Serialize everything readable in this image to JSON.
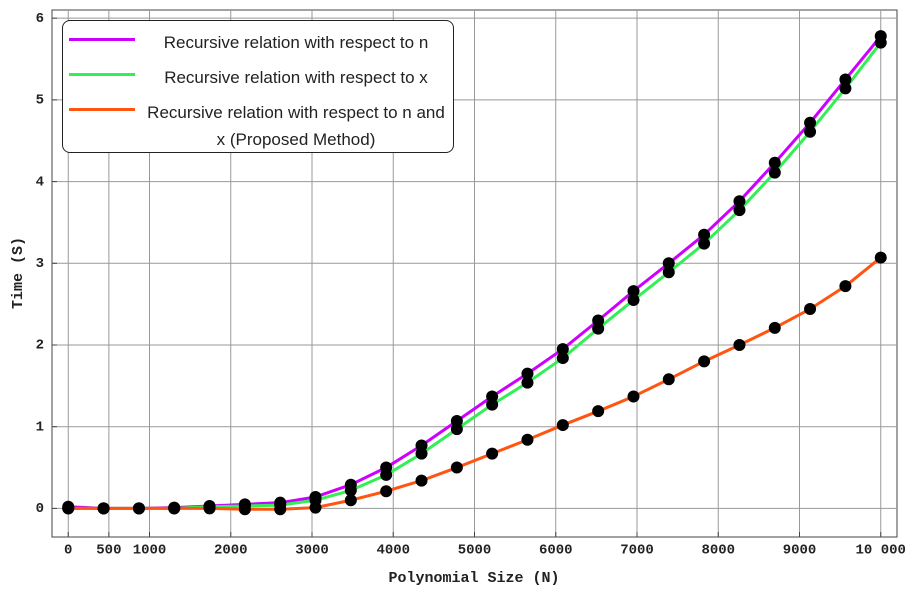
{
  "chart_data": {
    "type": "line",
    "xlabel": "Polynomial Size (N)",
    "ylabel": "Time (S)",
    "x": [
      0,
      435,
      870,
      1304,
      1739,
      2174,
      2609,
      3043,
      3478,
      3913,
      4348,
      4783,
      5217,
      5652,
      6087,
      6522,
      6957,
      7391,
      7826,
      8261,
      8696,
      9130,
      9565,
      10000
    ],
    "series": [
      {
        "name": "Recursive relation with respect to n",
        "color": "#cc00ff",
        "values": [
          0.02,
          0.0,
          0.0,
          0.01,
          0.03,
          0.05,
          0.07,
          0.14,
          0.29,
          0.5,
          0.77,
          1.07,
          1.37,
          1.65,
          1.95,
          2.3,
          2.66,
          3.0,
          3.35,
          3.76,
          4.23,
          4.72,
          5.25,
          5.78
        ]
      },
      {
        "name": "Recursive relation with respect to x",
        "color": "#33ee55",
        "values": [
          0.0,
          0.0,
          0.0,
          0.0,
          0.02,
          0.03,
          0.04,
          0.1,
          0.22,
          0.41,
          0.67,
          0.97,
          1.27,
          1.54,
          1.84,
          2.2,
          2.55,
          2.89,
          3.24,
          3.65,
          4.11,
          4.61,
          5.14,
          5.7
        ]
      },
      {
        "name": "Recursive relation with respect to n and x (Proposed Method)",
        "color": "#ff5511",
        "values": [
          0.0,
          0.0,
          0.0,
          0.0,
          0.0,
          -0.01,
          -0.01,
          0.01,
          0.1,
          0.21,
          0.34,
          0.5,
          0.67,
          0.84,
          1.02,
          1.19,
          1.37,
          1.58,
          1.8,
          2.0,
          2.21,
          2.44,
          2.72,
          3.07
        ]
      }
    ],
    "xlim": [
      -200,
      10200
    ],
    "ylim": [
      -0.35,
      6.1
    ],
    "xticks": [
      0,
      500,
      1000,
      2000,
      3000,
      4000,
      5000,
      6000,
      7000,
      8000,
      9000,
      {
        "value": 10000,
        "label": "10 000"
      }
    ],
    "yticks": [
      0,
      1,
      2,
      3,
      4,
      5,
      6
    ],
    "grid": true,
    "legend": "upper left",
    "marker_color": "#000000"
  }
}
